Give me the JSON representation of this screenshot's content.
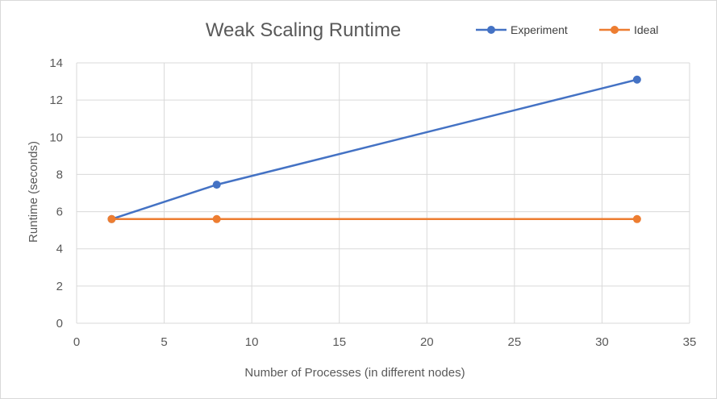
{
  "chart_data": {
    "type": "line",
    "title": "Weak Scaling Runtime",
    "xlabel": "Number of Processes (in different nodes)",
    "ylabel": "Runtime (seconds)",
    "xlim": [
      0,
      35
    ],
    "ylim": [
      0,
      14
    ],
    "xticks": [
      "0",
      "5",
      "10",
      "15",
      "20",
      "25",
      "30",
      "35"
    ],
    "yticks": [
      "0",
      "2",
      "4",
      "6",
      "8",
      "10",
      "12",
      "14"
    ],
    "grid": true,
    "legend_position": "top-right",
    "series": [
      {
        "name": "Experiment",
        "color": "#4472c4",
        "points": [
          {
            "x": 2,
            "y": 5.6
          },
          {
            "x": 8,
            "y": 7.45
          },
          {
            "x": 32,
            "y": 13.1
          }
        ]
      },
      {
        "name": "Ideal",
        "color": "#ed7d31",
        "points": [
          {
            "x": 2,
            "y": 5.6
          },
          {
            "x": 8,
            "y": 5.6
          },
          {
            "x": 32,
            "y": 5.6
          }
        ]
      }
    ]
  }
}
